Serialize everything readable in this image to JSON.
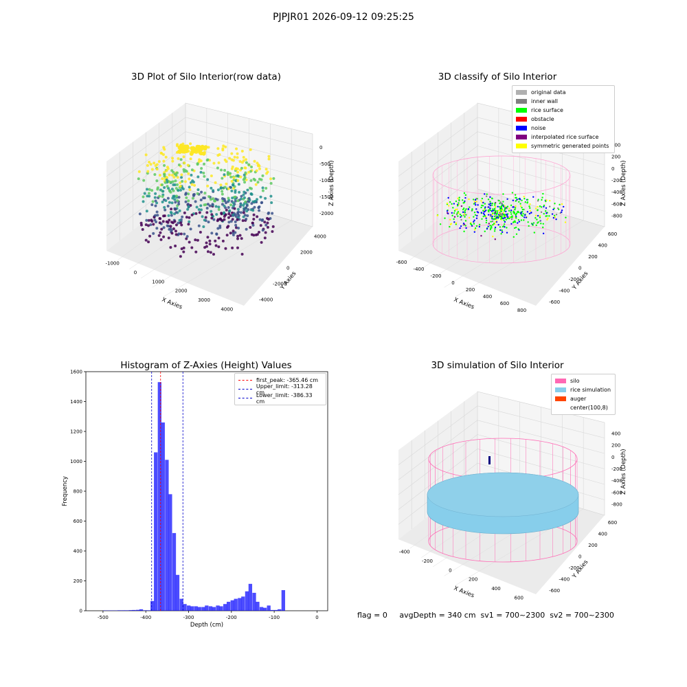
{
  "suptitle": "PJPJR01 2026-09-12 09:25:25",
  "panels": {
    "raw": {
      "title": "3D Plot of Silo Interior(row data)",
      "xlabel": "X Axies",
      "ylabel": "Y Axies",
      "zlabel": "Z Axies (Depth)",
      "xticks": [
        "-1000",
        "0",
        "1000",
        "2000",
        "3000",
        "4000"
      ],
      "yticks": [
        "-4000",
        "-2000",
        "0",
        "2000",
        "4000"
      ],
      "zticks": [
        "0",
        "-500",
        "-1000",
        "-1500",
        "-2000"
      ]
    },
    "classify": {
      "title": "3D classify of Silo Interior",
      "xlabel": "X Axies",
      "ylabel": "Y Axies",
      "zlabel": "Z Axies (Depth)",
      "xticks": [
        "-600",
        "-400",
        "-200",
        "0",
        "200",
        "400",
        "600",
        "800"
      ],
      "yticks": [
        "-600",
        "-400",
        "-200",
        "0",
        "200",
        "400",
        "600"
      ],
      "zticks": [
        "400",
        "200",
        "0",
        "-200",
        "-400",
        "-600",
        "-800"
      ],
      "legend": [
        {
          "label": "original data",
          "color": "#b0b0b0"
        },
        {
          "label": "inner wall",
          "color": "#808080"
        },
        {
          "label": "rice surface",
          "color": "#00ff00"
        },
        {
          "label": "obstacle",
          "color": "#ff0000"
        },
        {
          "label": "noise",
          "color": "#0000ff"
        },
        {
          "label": "interpolated rice surface",
          "color": "#800080"
        },
        {
          "label": "symmetric generated points",
          "color": "#ffff00"
        }
      ]
    },
    "simulation": {
      "title": "3D simulation of Silo Interior",
      "xlabel": "X Axies",
      "ylabel": "Y Axies",
      "zlabel": "Z Axies (Depth)",
      "xticks": [
        "-400",
        "-200",
        "0",
        "200",
        "400",
        "600"
      ],
      "yticks": [
        "-600",
        "-400",
        "-200",
        "0",
        "200",
        "400",
        "600"
      ],
      "zticks": [
        "400",
        "200",
        "0",
        "-200",
        "-400",
        "-600",
        "-800"
      ],
      "legend": [
        {
          "label": "silo",
          "color": "#ff69b4"
        },
        {
          "label": "rice simulation",
          "color": "#87ceeb"
        },
        {
          "label": "auger",
          "color": "#ff4500"
        },
        {
          "label": "center(100,8)",
          "color": "#ffffff"
        }
      ]
    }
  },
  "status_text": "flag = 0     avgDepth = 340 cm  sv1 = 700~2300  sv2 = 700~2300",
  "chart_data": {
    "type": "bar",
    "title": "Histogram of Z-Axies (Height) Values",
    "xlabel": "Depth (cm)",
    "ylabel": "Frequency",
    "xlim": [
      -540,
      25
    ],
    "ylim": [
      0,
      1600
    ],
    "xticks": [
      -500,
      -400,
      -300,
      -200,
      -100,
      0
    ],
    "yticks": [
      0,
      200,
      400,
      600,
      800,
      1000,
      1200,
      1400,
      1600
    ],
    "bar_color": "#0000ff",
    "bin_width": 8.5,
    "bins": [
      [
        -500,
        2
      ],
      [
        -491,
        2
      ],
      [
        -483,
        2
      ],
      [
        -474,
        2
      ],
      [
        -466,
        3
      ],
      [
        -457,
        3
      ],
      [
        -449,
        3
      ],
      [
        -440,
        4
      ],
      [
        -432,
        5
      ],
      [
        -423,
        6
      ],
      [
        -415,
        10
      ],
      [
        -406,
        3
      ],
      [
        -398,
        3
      ],
      [
        -389,
        65
      ],
      [
        -381,
        1060
      ],
      [
        -372,
        1530
      ],
      [
        -364,
        1260
      ],
      [
        -355,
        1010
      ],
      [
        -347,
        780
      ],
      [
        -338,
        520
      ],
      [
        -330,
        240
      ],
      [
        -321,
        80
      ],
      [
        -313,
        45
      ],
      [
        -304,
        35
      ],
      [
        -296,
        30
      ],
      [
        -287,
        30
      ],
      [
        -279,
        25
      ],
      [
        -270,
        25
      ],
      [
        -262,
        35
      ],
      [
        -253,
        30
      ],
      [
        -245,
        25
      ],
      [
        -236,
        35
      ],
      [
        -228,
        30
      ],
      [
        -219,
        45
      ],
      [
        -211,
        60
      ],
      [
        -202,
        70
      ],
      [
        -194,
        80
      ],
      [
        -185,
        85
      ],
      [
        -177,
        95
      ],
      [
        -168,
        130
      ],
      [
        -160,
        180
      ],
      [
        -151,
        120
      ],
      [
        -143,
        60
      ],
      [
        -134,
        25
      ],
      [
        -126,
        20
      ],
      [
        -117,
        35
      ],
      [
        -109,
        5
      ],
      [
        -100,
        5
      ],
      [
        -92,
        10
      ],
      [
        -83,
        138
      ]
    ],
    "lines": [
      {
        "label": "first_peak: -365.46 cm",
        "x": -365.46,
        "color": "#ff0000"
      },
      {
        "label": "Upper_limit: -313.28 cm",
        "x": -313.28,
        "color": "#0000cc"
      },
      {
        "label": "Lower_limit: -386.33 cm",
        "x": -386.33,
        "color": "#0000cc"
      }
    ]
  }
}
